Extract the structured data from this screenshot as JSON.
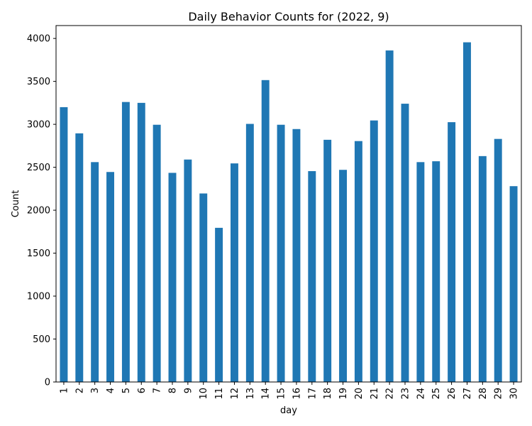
{
  "chart_data": {
    "type": "bar",
    "title": "Daily Behavior Counts for (2022, 9)",
    "xlabel": "day",
    "ylabel": "Count",
    "categories": [
      "1",
      "2",
      "3",
      "4",
      "5",
      "6",
      "7",
      "8",
      "9",
      "10",
      "11",
      "12",
      "13",
      "14",
      "15",
      "16",
      "17",
      "18",
      "19",
      "20",
      "21",
      "22",
      "23",
      "24",
      "25",
      "26",
      "27",
      "28",
      "29",
      "30"
    ],
    "values": [
      3200,
      2895,
      2560,
      2445,
      3260,
      3250,
      2995,
      2435,
      2590,
      2195,
      1795,
      2545,
      3005,
      3515,
      2995,
      2945,
      2455,
      2820,
      2470,
      2805,
      3045,
      3860,
      3240,
      2560,
      2570,
      3025,
      3955,
      2630,
      2830,
      2280
    ],
    "ylim": [
      0,
      4150
    ],
    "yticks": [
      0,
      500,
      1000,
      1500,
      2000,
      2500,
      3000,
      3500,
      4000
    ],
    "bar_color": "#1f77b4",
    "grid": false,
    "legend": "none"
  }
}
